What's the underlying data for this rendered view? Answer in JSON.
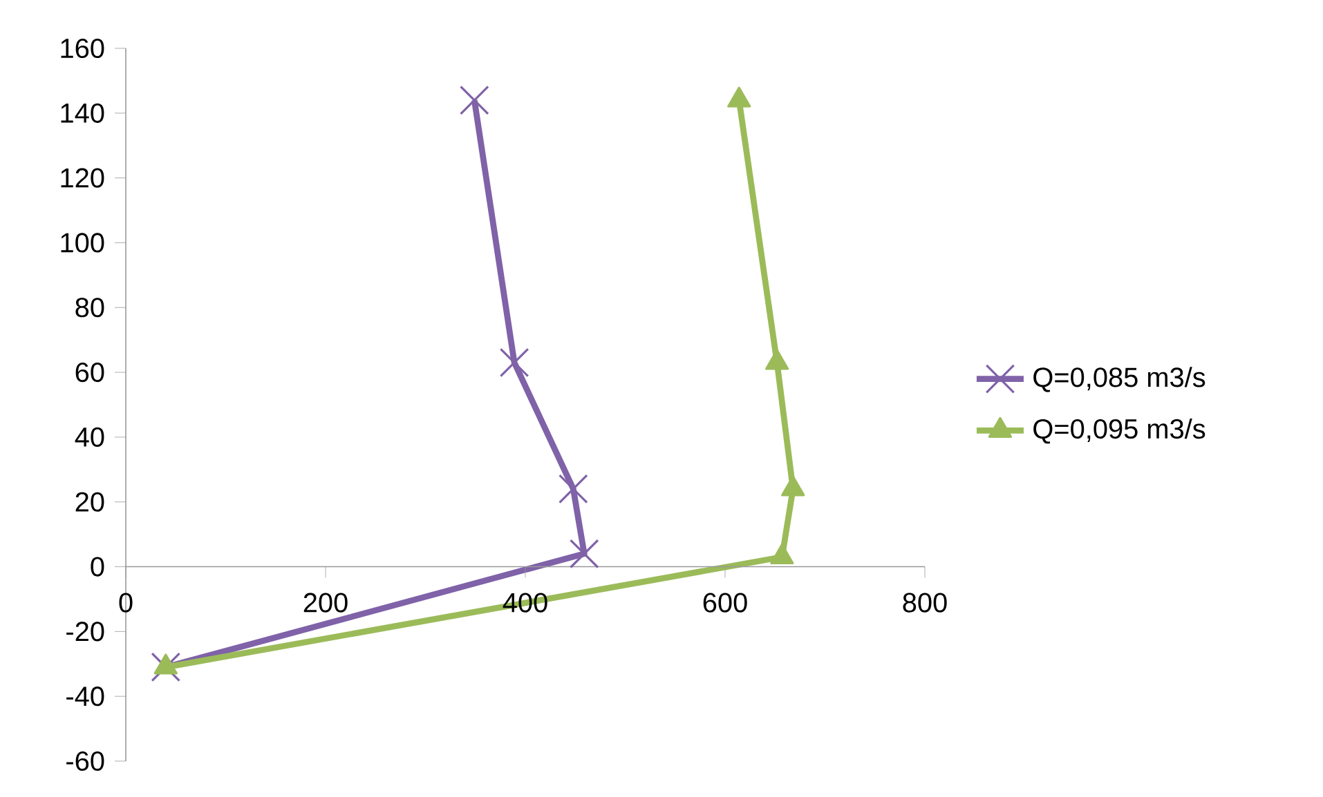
{
  "chart_data": {
    "type": "line",
    "xlim": [
      0,
      800
    ],
    "ylim": [
      -60,
      160
    ],
    "xticks": [
      0,
      200,
      400,
      600,
      800
    ],
    "yticks": [
      -60,
      -40,
      -20,
      0,
      20,
      40,
      60,
      80,
      100,
      120,
      140,
      160
    ],
    "grid": false,
    "legend": "right",
    "line_style": "solid",
    "series": [
      {
        "name": "Q=0,085 m3/s",
        "color": "#7f62a8",
        "marker": "cross",
        "x": [
          349,
          389,
          448,
          459,
          40
        ],
        "values": [
          144,
          63,
          24,
          4,
          -31
        ]
      },
      {
        "name": "Q=0,095 m3/s",
        "color": "#9bbb59",
        "marker": "triangle",
        "x": [
          614,
          652,
          668,
          657,
          40
        ],
        "values": [
          144,
          63,
          24,
          3,
          -31
        ]
      }
    ]
  }
}
